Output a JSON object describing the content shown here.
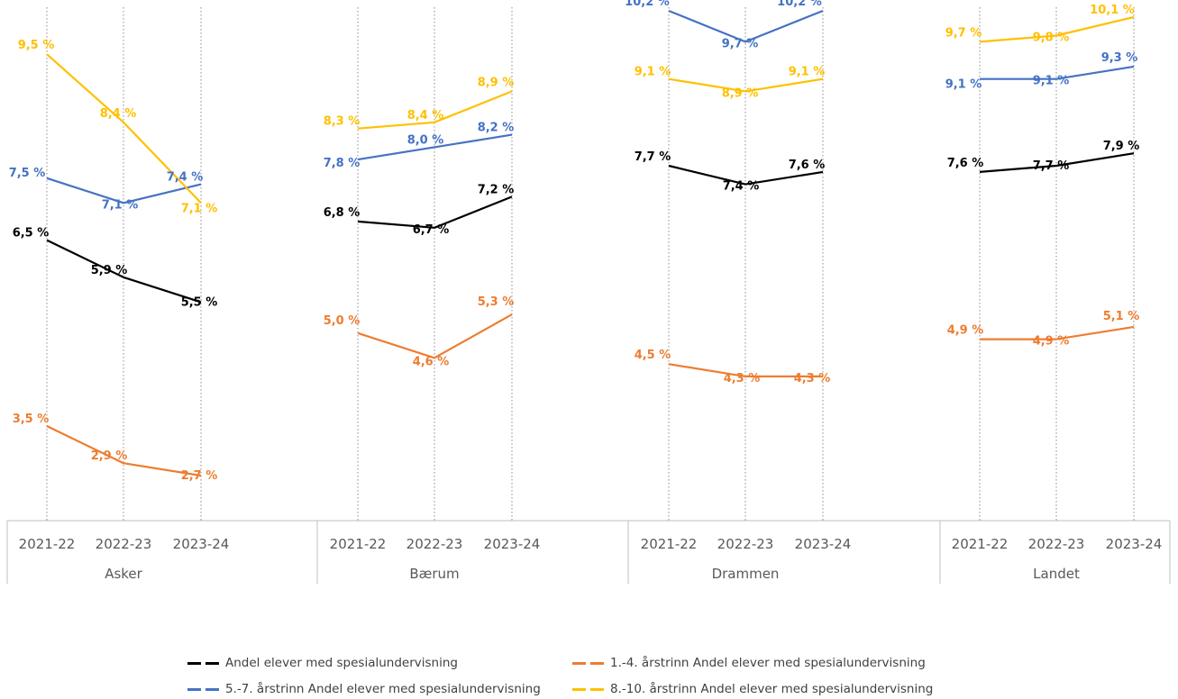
{
  "chart_data": {
    "type": "line",
    "groups": [
      "Asker",
      "Bærum",
      "Drammen",
      "Landet"
    ],
    "categories": [
      "2021-22",
      "2022-23",
      "2023-24"
    ],
    "ylim": [
      0,
      11
    ],
    "series": [
      {
        "name": "Andel elever med spesialundervisning",
        "color": "#000000",
        "values": [
          [
            6.5,
            5.9,
            5.5
          ],
          [
            6.8,
            6.7,
            7.2
          ],
          [
            7.7,
            7.4,
            7.6
          ],
          [
            7.6,
            7.7,
            7.9
          ]
        ],
        "labels": [
          [
            "6,5 %",
            "5,9 %",
            "5,5 %"
          ],
          [
            "6,8 %",
            "6,7 %",
            "7,2 %"
          ],
          [
            "7,7 %",
            "7,4 %",
            "7,6 %"
          ],
          [
            "7,6 %",
            "7,7 %",
            "7,9 %"
          ]
        ]
      },
      {
        "name": "1.-4. årstrinn Andel elever med spesialundervisning",
        "color": "#ED7D31",
        "values": [
          [
            3.5,
            2.9,
            2.7
          ],
          [
            5.0,
            4.6,
            5.3
          ],
          [
            4.5,
            4.3,
            4.3
          ],
          [
            4.9,
            4.9,
            5.1
          ]
        ],
        "labels": [
          [
            "3,5 %",
            "2,9 %",
            "2,7 %"
          ],
          [
            "5,0 %",
            "4,6 %",
            "5,3 %"
          ],
          [
            "4,5 %",
            "4,3 %",
            "4,3 %"
          ],
          [
            "4,9 %",
            "4,9 %",
            "5,1 %"
          ]
        ]
      },
      {
        "name": "5.-7. årstrinn Andel elever med spesialundervisning",
        "color": "#4472C4",
        "values": [
          [
            7.5,
            7.1,
            7.4
          ],
          [
            7.8,
            8.0,
            8.2
          ],
          [
            10.2,
            9.7,
            10.2
          ],
          [
            9.1,
            9.1,
            9.3
          ]
        ],
        "labels": [
          [
            "7,5 %",
            "7,1 %",
            "7,4 %"
          ],
          [
            "7,8 %",
            "8,0 %",
            "8,2 %"
          ],
          [
            "10,2 %",
            "9,7 %",
            "10,2 %"
          ],
          [
            "9,1 %",
            "9,1 %",
            "9,3 %"
          ]
        ]
      },
      {
        "name": "8.-10. årstrinn Andel elever med spesialundervisning",
        "color": "#FFC000",
        "values": [
          [
            9.5,
            8.4,
            7.1
          ],
          [
            8.3,
            8.4,
            8.9
          ],
          [
            9.1,
            8.9,
            9.1
          ],
          [
            9.7,
            9.8,
            10.1
          ]
        ],
        "labels": [
          [
            "9,5 %",
            "8,4 %",
            "7,1 %"
          ],
          [
            "8,3 %",
            "8,4 %",
            "8,9 %"
          ],
          [
            "9,1 %",
            "8,9 %",
            "9,1 %"
          ],
          [
            "9,7 %",
            "9,8 %",
            "10,1 %"
          ]
        ]
      }
    ]
  }
}
